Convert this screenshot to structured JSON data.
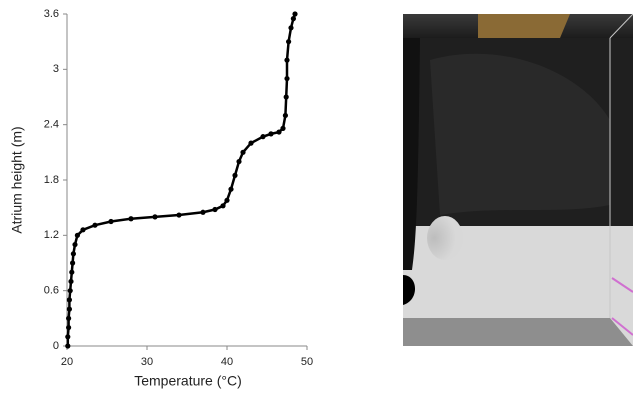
{
  "chart_data": {
    "type": "line",
    "x_label": "Temperature (°C)",
    "y_label": "Atrium height (m)",
    "x": [
      20.1,
      20.1,
      20.2,
      20.2,
      20.3,
      20.3,
      20.4,
      20.5,
      20.6,
      20.7,
      20.8,
      21.0,
      21.3,
      22.0,
      23.5,
      25.5,
      28.0,
      31.0,
      34.0,
      37.0,
      38.5,
      39.5,
      40.0,
      40.5,
      41.0,
      41.5,
      42.0,
      43.0,
      44.5,
      45.5,
      46.5,
      47.0,
      47.3,
      47.4,
      47.5,
      47.5,
      47.7,
      48.0,
      48.3,
      48.5
    ],
    "values": [
      0,
      0.1,
      0.2,
      0.3,
      0.4,
      0.5,
      0.6,
      0.7,
      0.8,
      0.9,
      1.0,
      1.1,
      1.2,
      1.26,
      1.31,
      1.35,
      1.38,
      1.4,
      1.42,
      1.45,
      1.48,
      1.52,
      1.58,
      1.7,
      1.85,
      2.0,
      2.1,
      2.2,
      2.27,
      2.3,
      2.32,
      2.36,
      2.5,
      2.7,
      2.9,
      3.1,
      3.3,
      3.45,
      3.55,
      3.6
    ],
    "color": "#000000",
    "xlim": [
      20,
      50
    ],
    "xticks": [
      20,
      30,
      40,
      50
    ],
    "ylim": [
      0,
      3.6
    ],
    "yticks": [
      0,
      0.6,
      1.2,
      1.8,
      2.4,
      3,
      3.6
    ]
  }
}
